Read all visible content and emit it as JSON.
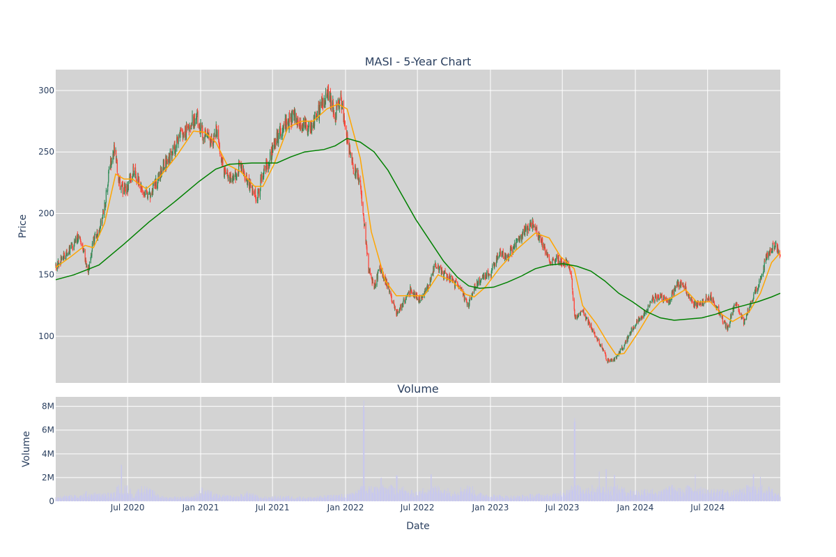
{
  "chart_data": [
    {
      "type": "candlestick",
      "title": "MASI - 5-Year Chart",
      "xlabel": "",
      "ylabel": "Price",
      "x_range": [
        "2020-01-02",
        "2024-12-31"
      ],
      "ylim": [
        62,
        317
      ],
      "y_ticks": [
        100,
        150,
        200,
        250,
        300
      ],
      "grid": true,
      "plot_background": "#d3d3d3",
      "up_color": "#2e8b57",
      "down_color": "#ff4136",
      "close_points": [
        [
          "2020-01-02",
          157
        ],
        [
          "2020-01-20",
          165
        ],
        [
          "2020-02-10",
          172
        ],
        [
          "2020-03-02",
          183
        ],
        [
          "2020-03-16",
          163
        ],
        [
          "2020-03-23",
          150
        ],
        [
          "2020-04-06",
          178
        ],
        [
          "2020-04-20",
          185
        ],
        [
          "2020-05-04",
          205
        ],
        [
          "2020-05-18",
          240
        ],
        [
          "2020-05-28",
          255
        ],
        [
          "2020-06-12",
          222
        ],
        [
          "2020-06-29",
          218
        ],
        [
          "2020-07-15",
          235
        ],
        [
          "2020-08-03",
          225
        ],
        [
          "2020-08-20",
          213
        ],
        [
          "2020-09-10",
          224
        ],
        [
          "2020-09-28",
          238
        ],
        [
          "2020-10-19",
          248
        ],
        [
          "2020-11-09",
          262
        ],
        [
          "2020-12-01",
          268
        ],
        [
          "2020-12-21",
          280
        ],
        [
          "2021-01-08",
          265
        ],
        [
          "2021-01-27",
          258
        ],
        [
          "2021-02-10",
          268
        ],
        [
          "2021-03-01",
          232
        ],
        [
          "2021-03-22",
          228
        ],
        [
          "2021-04-12",
          240
        ],
        [
          "2021-05-03",
          222
        ],
        [
          "2021-05-24",
          212
        ],
        [
          "2021-06-07",
          235
        ],
        [
          "2021-06-21",
          242
        ],
        [
          "2021-07-12",
          262
        ],
        [
          "2021-08-02",
          272
        ],
        [
          "2021-08-23",
          280
        ],
        [
          "2021-09-13",
          272
        ],
        [
          "2021-10-04",
          270
        ],
        [
          "2021-10-25",
          282
        ],
        [
          "2021-11-15",
          300
        ],
        [
          "2021-12-06",
          280
        ],
        [
          "2021-12-20",
          295
        ],
        [
          "2022-01-05",
          262
        ],
        [
          "2022-01-20",
          238
        ],
        [
          "2022-02-07",
          225
        ],
        [
          "2022-02-28",
          155
        ],
        [
          "2022-03-14",
          140
        ],
        [
          "2022-03-28",
          155
        ],
        [
          "2022-04-18",
          140
        ],
        [
          "2022-05-09",
          118
        ],
        [
          "2022-05-23",
          125
        ],
        [
          "2022-06-13",
          138
        ],
        [
          "2022-07-05",
          130
        ],
        [
          "2022-07-25",
          138
        ],
        [
          "2022-08-15",
          158
        ],
        [
          "2022-09-06",
          150
        ],
        [
          "2022-09-26",
          145
        ],
        [
          "2022-10-17",
          138
        ],
        [
          "2022-11-07",
          125
        ],
        [
          "2022-11-21",
          140
        ],
        [
          "2022-12-12",
          148
        ],
        [
          "2023-01-03",
          152
        ],
        [
          "2023-01-23",
          168
        ],
        [
          "2023-02-13",
          165
        ],
        [
          "2023-03-06",
          175
        ],
        [
          "2023-03-27",
          185
        ],
        [
          "2023-04-17",
          193
        ],
        [
          "2023-05-08",
          178
        ],
        [
          "2023-05-29",
          163
        ],
        [
          "2023-06-19",
          162
        ],
        [
          "2023-07-10",
          160
        ],
        [
          "2023-07-24",
          150
        ],
        [
          "2023-08-01",
          115
        ],
        [
          "2023-08-21",
          120
        ],
        [
          "2023-09-11",
          108
        ],
        [
          "2023-10-02",
          95
        ],
        [
          "2023-10-23",
          80
        ],
        [
          "2023-11-13",
          82
        ],
        [
          "2023-12-04",
          93
        ],
        [
          "2023-12-27",
          108
        ],
        [
          "2024-01-22",
          118
        ],
        [
          "2024-02-12",
          130
        ],
        [
          "2024-03-04",
          132
        ],
        [
          "2024-03-25",
          128
        ],
        [
          "2024-04-15",
          143
        ],
        [
          "2024-05-06",
          140
        ],
        [
          "2024-05-27",
          125
        ],
        [
          "2024-06-17",
          128
        ],
        [
          "2024-07-08",
          133
        ],
        [
          "2024-07-29",
          120
        ],
        [
          "2024-08-19",
          106
        ],
        [
          "2024-09-09",
          128
        ],
        [
          "2024-09-30",
          112
        ],
        [
          "2024-10-21",
          130
        ],
        [
          "2024-11-11",
          145
        ],
        [
          "2024-11-25",
          165
        ],
        [
          "2024-12-16",
          175
        ],
        [
          "2024-12-31",
          168
        ]
      ],
      "series": [
        {
          "name": "",
          "color": "#ffa500",
          "points": [
            [
              "2020-01-02",
              156
            ],
            [
              "2020-02-10",
              165
            ],
            [
              "2020-03-16",
              174
            ],
            [
              "2020-04-06",
              172
            ],
            [
              "2020-05-04",
              192
            ],
            [
              "2020-06-01",
              232
            ],
            [
              "2020-06-22",
              228
            ],
            [
              "2020-07-13",
              228
            ],
            [
              "2020-08-17",
              220
            ],
            [
              "2020-09-21",
              230
            ],
            [
              "2020-11-02",
              247
            ],
            [
              "2020-12-14",
              267
            ],
            [
              "2021-01-11",
              266
            ],
            [
              "2021-02-08",
              258
            ],
            [
              "2021-03-08",
              240
            ],
            [
              "2021-04-12",
              234
            ],
            [
              "2021-05-17",
              222
            ],
            [
              "2021-06-07",
              222
            ],
            [
              "2021-07-05",
              240
            ],
            [
              "2021-08-09",
              270
            ],
            [
              "2021-09-13",
              275
            ],
            [
              "2021-10-11",
              275
            ],
            [
              "2021-11-15",
              285
            ],
            [
              "2021-12-13",
              289
            ],
            [
              "2022-01-05",
              285
            ],
            [
              "2022-02-07",
              245
            ],
            [
              "2022-03-07",
              185
            ],
            [
              "2022-04-11",
              145
            ],
            [
              "2022-05-09",
              133
            ],
            [
              "2022-06-13",
              133
            ],
            [
              "2022-07-18",
              133
            ],
            [
              "2022-08-22",
              150
            ],
            [
              "2022-09-26",
              145
            ],
            [
              "2022-10-31",
              134
            ],
            [
              "2022-11-21",
              132
            ],
            [
              "2022-12-19",
              140
            ],
            [
              "2023-01-23",
              155
            ],
            [
              "2023-03-06",
              170
            ],
            [
              "2023-04-24",
              184
            ],
            [
              "2023-05-29",
              180
            ],
            [
              "2023-06-26",
              165
            ],
            [
              "2023-07-31",
              155
            ],
            [
              "2023-08-21",
              125
            ],
            [
              "2023-09-25",
              110
            ],
            [
              "2023-10-23",
              95
            ],
            [
              "2023-11-13",
              85
            ],
            [
              "2023-12-04",
              86
            ],
            [
              "2024-01-08",
              103
            ],
            [
              "2024-02-05",
              118
            ],
            [
              "2024-03-04",
              128
            ],
            [
              "2024-04-01",
              131
            ],
            [
              "2024-05-06",
              138
            ],
            [
              "2024-06-03",
              128
            ],
            [
              "2024-07-08",
              128
            ],
            [
              "2024-08-05",
              118
            ],
            [
              "2024-09-02",
              112
            ],
            [
              "2024-10-14",
              120
            ],
            [
              "2024-11-11",
              135
            ],
            [
              "2024-12-09",
              160
            ],
            [
              "2024-12-31",
              168
            ]
          ]
        },
        {
          "name": "",
          "color": "#008000",
          "points": [
            [
              "2020-01-02",
              146
            ],
            [
              "2020-02-17",
              150
            ],
            [
              "2020-04-20",
              158
            ],
            [
              "2020-06-22",
              175
            ],
            [
              "2020-08-24",
              193
            ],
            [
              "2020-10-26",
              209
            ],
            [
              "2020-12-28",
              226
            ],
            [
              "2021-02-08",
              236
            ],
            [
              "2021-03-15",
              240
            ],
            [
              "2021-05-10",
              241
            ],
            [
              "2021-07-12",
              241
            ],
            [
              "2021-08-16",
              246
            ],
            [
              "2021-09-20",
              250
            ],
            [
              "2021-11-08",
              252
            ],
            [
              "2021-12-06",
              255
            ],
            [
              "2022-01-05",
              261
            ],
            [
              "2022-02-07",
              258
            ],
            [
              "2022-03-14",
              250
            ],
            [
              "2022-04-18",
              235
            ],
            [
              "2022-05-23",
              215
            ],
            [
              "2022-06-27",
              195
            ],
            [
              "2022-08-01",
              178
            ],
            [
              "2022-09-05",
              161
            ],
            [
              "2022-10-10",
              148
            ],
            [
              "2022-11-07",
              141
            ],
            [
              "2022-12-05",
              139
            ],
            [
              "2023-01-09",
              140
            ],
            [
              "2023-02-13",
              144
            ],
            [
              "2023-03-20",
              149
            ],
            [
              "2023-04-24",
              155
            ],
            [
              "2023-05-29",
              158
            ],
            [
              "2023-07-03",
              159
            ],
            [
              "2023-08-07",
              157
            ],
            [
              "2023-09-11",
              153
            ],
            [
              "2023-10-16",
              145
            ],
            [
              "2023-11-20",
              135
            ],
            [
              "2023-12-25",
              128
            ],
            [
              "2024-01-29",
              120
            ],
            [
              "2024-03-04",
              115
            ],
            [
              "2024-04-08",
              113
            ],
            [
              "2024-05-13",
              114
            ],
            [
              "2024-06-17",
              115
            ],
            [
              "2024-07-22",
              118
            ],
            [
              "2024-08-26",
              122
            ],
            [
              "2024-09-30",
              125
            ],
            [
              "2024-11-04",
              128
            ],
            [
              "2024-12-09",
              132
            ],
            [
              "2024-12-31",
              135
            ]
          ]
        }
      ]
    },
    {
      "type": "bar",
      "title": "Volume",
      "xlabel": "Date",
      "ylabel": "Volume",
      "ylim": [
        0,
        8800000
      ],
      "y_ticks": [
        0,
        2000000,
        4000000,
        6000000,
        8000000
      ],
      "y_tick_labels": [
        "0",
        "2M",
        "4M",
        "6M",
        "8M"
      ],
      "grid": true,
      "bar_color": "#c8c8ee",
      "x_ticks": [
        "2020-07-01",
        "2021-01-01",
        "2021-07-01",
        "2022-01-01",
        "2022-07-01",
        "2023-01-01",
        "2023-07-01",
        "2024-01-01",
        "2024-07-01"
      ],
      "x_tick_labels": [
        "Jul 2020",
        "Jan 2021",
        "Jul 2021",
        "Jan 2022",
        "Jul 2022",
        "Jan 2023",
        "Jul 2023",
        "Jan 2024",
        "Jul 2024"
      ],
      "volume_points": [
        [
          "2020-01-02",
          400000
        ],
        [
          "2020-02-03",
          600000
        ],
        [
          "2020-03-02",
          500000
        ],
        [
          "2020-03-20",
          900000
        ],
        [
          "2020-04-20",
          700000
        ],
        [
          "2020-06-01",
          800000
        ],
        [
          "2020-06-15",
          3100000
        ],
        [
          "2020-07-15",
          500000
        ],
        [
          "2020-08-05",
          1500000
        ],
        [
          "2020-10-01",
          400000
        ],
        [
          "2020-12-15",
          500000
        ],
        [
          "2021-01-04",
          1200000
        ],
        [
          "2021-02-15",
          600000
        ],
        [
          "2021-04-01",
          500000
        ],
        [
          "2021-05-01",
          900000
        ],
        [
          "2021-06-01",
          400000
        ],
        [
          "2021-08-01",
          500000
        ],
        [
          "2021-10-01",
          400000
        ],
        [
          "2021-12-01",
          600000
        ],
        [
          "2022-01-15",
          700000
        ],
        [
          "2022-02-01",
          1200000
        ],
        [
          "2022-02-16",
          8500000
        ],
        [
          "2022-02-25",
          1500000
        ],
        [
          "2022-03-15",
          1400000
        ],
        [
          "2022-04-01",
          2000000
        ],
        [
          "2022-04-15",
          1300000
        ],
        [
          "2022-05-10",
          2200000
        ],
        [
          "2022-06-01",
          1000000
        ],
        [
          "2022-07-10",
          900000
        ],
        [
          "2022-08-05",
          2300000
        ],
        [
          "2022-09-01",
          1300000
        ],
        [
          "2022-10-01",
          1000000
        ],
        [
          "2022-11-08",
          1600000
        ],
        [
          "2022-12-01",
          800000
        ],
        [
          "2023-01-15",
          600000
        ],
        [
          "2023-03-01",
          500000
        ],
        [
          "2023-05-01",
          700000
        ],
        [
          "2023-06-01",
          600000
        ],
        [
          "2023-07-15",
          1200000
        ],
        [
          "2023-08-01",
          7000000
        ],
        [
          "2023-08-20",
          1500000
        ],
        [
          "2023-09-01",
          1600000
        ],
        [
          "2023-10-01",
          2500000
        ],
        [
          "2023-10-20",
          2700000
        ],
        [
          "2023-11-10",
          2200000
        ],
        [
          "2023-12-01",
          1200000
        ],
        [
          "2024-01-10",
          1000000
        ],
        [
          "2024-02-01",
          1300000
        ],
        [
          "2024-03-01",
          900000
        ],
        [
          "2024-04-01",
          1600000
        ],
        [
          "2024-05-01",
          1000000
        ],
        [
          "2024-06-01",
          2300000
        ],
        [
          "2024-07-01",
          1000000
        ],
        [
          "2024-08-01",
          1200000
        ],
        [
          "2024-09-01",
          900000
        ],
        [
          "2024-10-01",
          1200000
        ],
        [
          "2024-10-25",
          2300000
        ],
        [
          "2024-11-10",
          2100000
        ],
        [
          "2024-12-01",
          1300000
        ],
        [
          "2024-12-31",
          700000
        ]
      ]
    }
  ]
}
